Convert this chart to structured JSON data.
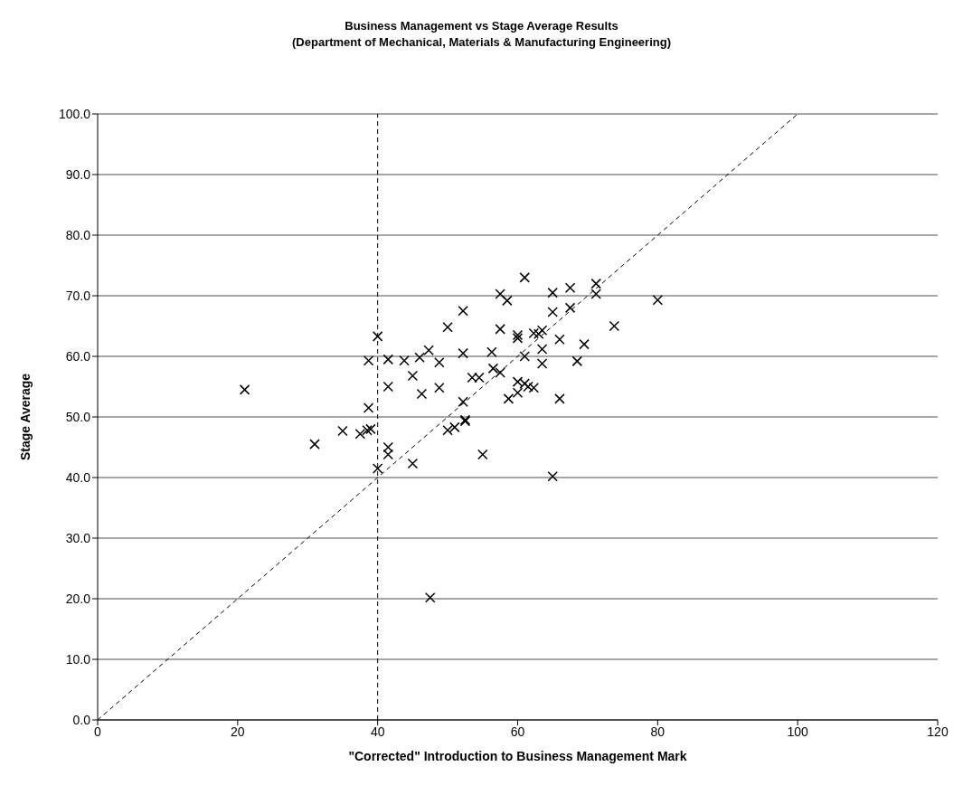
{
  "chart_data": {
    "type": "scatter",
    "title": "Business Management vs Stage Average Results",
    "subtitle": "(Department of Mechanical, Materials & Manufacturing Engineering)",
    "xlabel": "\"Corrected\" Introduction to Business Management Mark",
    "ylabel": "Stage Average",
    "marker": "cross",
    "grid": "y",
    "legend": false,
    "xlim": [
      0,
      120
    ],
    "xticks": [
      0,
      20,
      40,
      60,
      80,
      100,
      120
    ],
    "ylim": [
      0,
      100
    ],
    "yticks": [
      {
        "value": 0,
        "label": "0.0"
      },
      {
        "value": 10,
        "label": "10.0"
      },
      {
        "value": 20,
        "label": "20.0"
      },
      {
        "value": 30,
        "label": "30.0"
      },
      {
        "value": 40,
        "label": "40.0"
      },
      {
        "value": 50,
        "label": "50.0"
      },
      {
        "value": 60,
        "label": "60.0"
      },
      {
        "value": 70,
        "label": "70.0"
      },
      {
        "value": 80,
        "label": "80.0"
      },
      {
        "value": 90,
        "label": "90.0"
      },
      {
        "value": 100,
        "label": "100.0"
      }
    ],
    "ref_lines": [
      {
        "axis": "x",
        "value": 40,
        "color": "#000000",
        "line_style": "dashed"
      }
    ],
    "series": [
      {
        "color": "#000000",
        "x": [
          21,
          31,
          35,
          37.5,
          38.5,
          38.7,
          38.7,
          39,
          40,
          40,
          41.5,
          41.5,
          41.5,
          41.5,
          43.8,
          45,
          45,
          46,
          46.3,
          47.3,
          47.5,
          48.8,
          48.8,
          50,
          50,
          51,
          52.2,
          52.2,
          52.2,
          52.5,
          52.5,
          53.5,
          54.5,
          55,
          56.3,
          56.5,
          57.5,
          57.5,
          57.5,
          58.5,
          58.7,
          60,
          60,
          60,
          60,
          61,
          61,
          61,
          61.5,
          62.3,
          62.3,
          63,
          63.5,
          63.5,
          63.5,
          65,
          65,
          65,
          66,
          66,
          67.5,
          67.5,
          68.5,
          69.5,
          71.2,
          71.2,
          73.8,
          80
        ],
        "values": [
          54.5,
          45.5,
          47.7,
          47.2,
          47.8,
          59.3,
          51.5,
          48,
          63.3,
          41.5,
          59.5,
          55,
          45,
          43.8,
          59.3,
          56.8,
          42.3,
          59.8,
          53.8,
          61,
          20.2,
          59,
          54.8,
          64.8,
          47.8,
          48.3,
          67.5,
          60.5,
          52.5,
          49.5,
          49.3,
          56.5,
          56.5,
          43.8,
          60.7,
          58,
          70.3,
          64.5,
          57.3,
          69.2,
          53,
          63.5,
          63,
          55.8,
          54,
          73,
          60,
          55.5,
          55,
          63.8,
          54.8,
          63.7,
          64.3,
          61.2,
          58.8,
          70.5,
          67.3,
          40.2,
          62.8,
          53,
          71.3,
          68,
          59.2,
          62,
          72,
          70.3,
          65,
          69.3
        ]
      },
      {
        "type": "line",
        "color": "#000000",
        "line_style": "dashed",
        "marker": "none",
        "x": [
          0,
          100
        ],
        "values": [
          0,
          100
        ]
      }
    ]
  }
}
